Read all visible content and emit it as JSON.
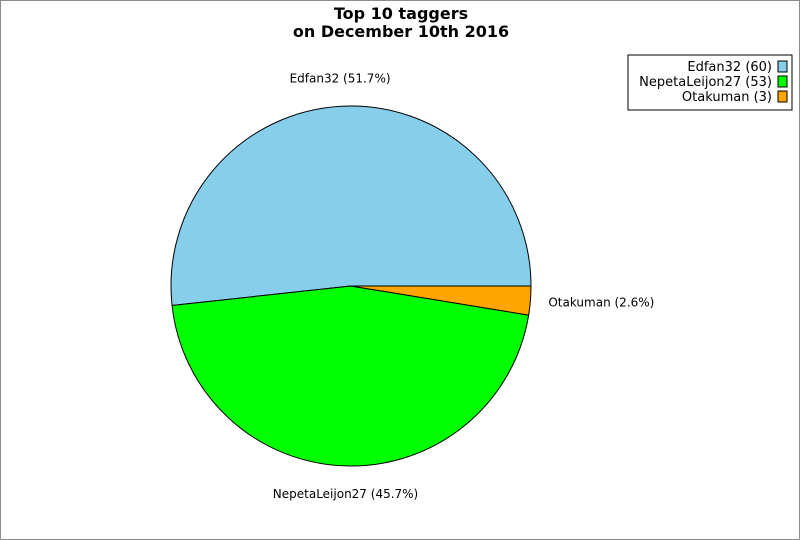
{
  "chart_data": {
    "type": "pie",
    "title_lines": [
      "Top 10 taggers",
      "on December 10th 2016"
    ],
    "slices": [
      {
        "name": "Edfan32",
        "value": 60,
        "percent_label": "Edfan32 (51.7%)",
        "legend_label": "Edfan32 (60)",
        "color": "#87ceeb"
      },
      {
        "name": "NepetaLeijon27",
        "value": 53,
        "percent_label": "NepetaLeijon27 (45.7%)",
        "legend_label": "NepetaLeijon27 (53)",
        "color": "#00ff00"
      },
      {
        "name": "Otakuman",
        "value": 3,
        "percent_label": "Otakuman (2.6%)",
        "legend_label": "Otakuman (3)",
        "color": "#ffa500"
      }
    ],
    "legend_position": "top-right"
  }
}
